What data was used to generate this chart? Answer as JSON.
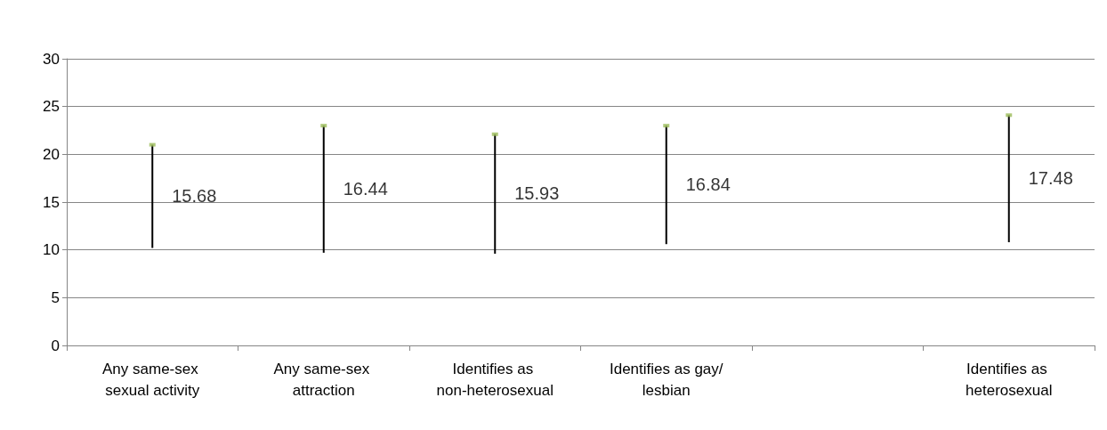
{
  "chart_data": {
    "type": "bar",
    "categories": [
      "Any same-sex sexual activity",
      "Any same-sex attraction",
      "Identifies as non-heterosexual",
      "Identifies as gay/lesbian",
      null,
      "Identifies as heterosexual"
    ],
    "series": [
      {
        "color": "#000000",
        "base": [
          10.2,
          9.7,
          9.6,
          10.6,
          null,
          10.8
        ],
        "values": [
          10.8,
          13.3,
          12.5,
          12.4,
          null,
          13.3
        ]
      },
      {
        "type": "scatter",
        "color": "#9bbb59",
        "marker": "square",
        "values": [
          21,
          23,
          22.1,
          23,
          null,
          24.1
        ]
      }
    ],
    "annotations": [
      {
        "text": "15.68",
        "x": "Any same-sex sexual activity",
        "y": 15.68
      },
      {
        "text": "16.44",
        "x": "Any same-sex attraction",
        "y": 16.44
      },
      {
        "text": "15.93",
        "x": "Identifies as non-heterosexual",
        "y": 15.93
      },
      {
        "text": "16.84",
        "x": "Identifies as gay/lesbian",
        "y": 16.84
      },
      {
        "text": "17.48",
        "x": "Identifies as heterosexual",
        "y": 17.48
      }
    ],
    "ylim": [
      0,
      30
    ],
    "yticks": [
      0,
      5,
      10,
      15,
      20,
      25,
      30
    ],
    "grid": "y"
  }
}
